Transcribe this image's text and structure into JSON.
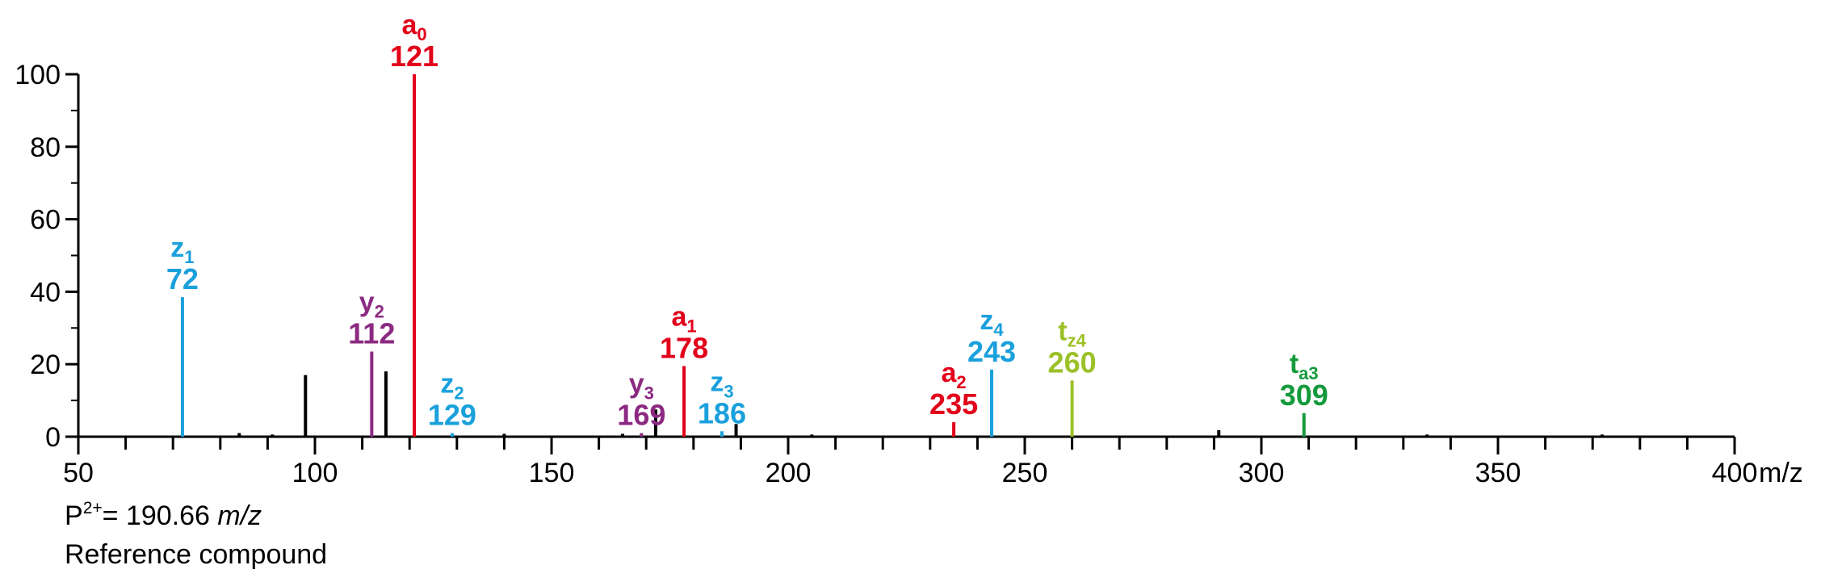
{
  "chart_data": {
    "type": "bar",
    "xlabel_unit": "m/z",
    "xlim": [
      50,
      400
    ],
    "ylim": [
      0,
      100
    ],
    "x_ticks": [
      50,
      100,
      150,
      200,
      250,
      300,
      350,
      400
    ],
    "y_ticks": [
      0,
      20,
      40,
      60,
      80,
      100
    ],
    "colors": {
      "a": "#e2001a",
      "z": "#1aa0dc",
      "y": "#8c2a82",
      "tz": "#9cc128",
      "ta": "#149a3c",
      "unlabeled": "#000000"
    },
    "labeled_peaks": [
      {
        "name": "z",
        "sub": "1",
        "mz": 72,
        "mz_label": "72",
        "intensity": 38.5,
        "color": "#1aa0dc"
      },
      {
        "name": "y",
        "sub": "2",
        "mz": 112,
        "mz_label": "112",
        "intensity": 23.5,
        "color": "#8c2a82"
      },
      {
        "name": "a",
        "sub": "0",
        "mz": 121,
        "mz_label": "121",
        "intensity": 100,
        "color": "#e2001a"
      },
      {
        "name": "z",
        "sub": "2",
        "mz": 129,
        "mz_label": "129",
        "intensity": 1.0,
        "color": "#1aa0dc"
      },
      {
        "name": "y",
        "sub": "3",
        "mz": 169,
        "mz_label": "169",
        "intensity": 1.0,
        "color": "#8c2a82"
      },
      {
        "name": "a",
        "sub": "1",
        "mz": 178,
        "mz_label": "178",
        "intensity": 19.5,
        "color": "#e2001a"
      },
      {
        "name": "z",
        "sub": "3",
        "mz": 186,
        "mz_label": "186",
        "intensity": 1.5,
        "color": "#1aa0dc"
      },
      {
        "name": "a",
        "sub": "2",
        "mz": 235,
        "mz_label": "235",
        "intensity": 4.0,
        "color": "#e2001a"
      },
      {
        "name": "z",
        "sub": "4",
        "mz": 243,
        "mz_label": "243",
        "intensity": 18.5,
        "color": "#1aa0dc"
      },
      {
        "name": "t",
        "sub": "z4",
        "mz": 260,
        "mz_label": "260",
        "intensity": 15.5,
        "color": "#9cc128"
      },
      {
        "name": "t",
        "sub": "a3",
        "mz": 309,
        "mz_label": "309",
        "intensity": 6.5,
        "color": "#149a3c"
      }
    ],
    "unlabeled_peaks": [
      {
        "mz": 98,
        "intensity": 17
      },
      {
        "mz": 115,
        "intensity": 18
      },
      {
        "mz": 172,
        "intensity": 7.5
      },
      {
        "mz": 189,
        "intensity": 3.5
      },
      {
        "mz": 84,
        "intensity": 1.0
      },
      {
        "mz": 91,
        "intensity": 0.6
      },
      {
        "mz": 140,
        "intensity": 0.8
      },
      {
        "mz": 165,
        "intensity": 0.8
      },
      {
        "mz": 205,
        "intensity": 0.6
      },
      {
        "mz": 291,
        "intensity": 1.8
      },
      {
        "mz": 335,
        "intensity": 0.6
      },
      {
        "mz": 372,
        "intensity": 0.6
      }
    ]
  },
  "caption": {
    "precursor_prefix": "P",
    "precursor_charge": "2+",
    "precursor_value": "= 190.66 ",
    "precursor_unit": "m/z",
    "compound": "Reference compound"
  }
}
